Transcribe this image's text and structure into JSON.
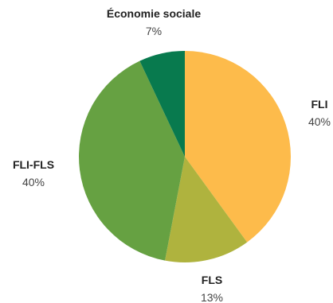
{
  "chart_data": {
    "type": "pie",
    "title": "",
    "categories": [
      "FLI",
      "FLS",
      "FLI-FLS",
      "Économie sociale"
    ],
    "values": [
      40,
      13,
      40,
      7
    ],
    "value_labels": [
      "40%",
      "13%",
      "40%",
      "7%"
    ],
    "colors": [
      "#FDBB4B",
      "#AFB33E",
      "#66A142",
      "#087A4E"
    ],
    "start": "12 o'clock",
    "direction": "clockwise",
    "legend": "none",
    "grid": false
  }
}
